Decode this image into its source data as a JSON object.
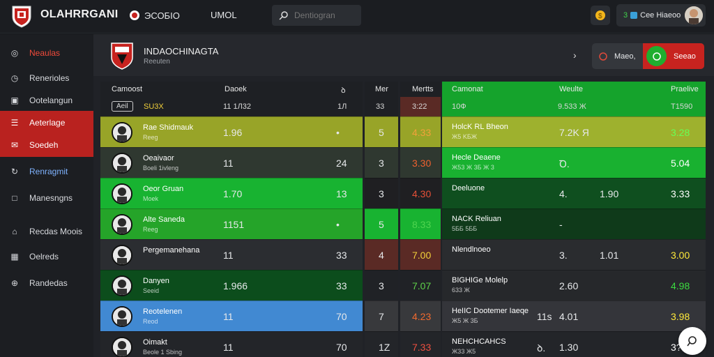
{
  "app": {
    "title": "OLAHRRGANI",
    "logo": "shield-logo"
  },
  "topnav": {
    "item_a": "ЭСОБIO",
    "item_b": "UMOL"
  },
  "search": {
    "placeholder": "Dentiogran"
  },
  "user": {
    "prefix": "3",
    "name": "Cee Hiaeoo"
  },
  "sidebar": {
    "items": [
      {
        "label": "Neaulas",
        "icon": "soccer-ball-icon",
        "state": "red-text"
      },
      {
        "label": "Renerioles",
        "icon": "clock-icon",
        "state": "normal"
      },
      {
        "label": "Ootelangun",
        "icon": "calendar-icon",
        "state": "normal"
      },
      {
        "label": "Aeterlage",
        "icon": "list-icon",
        "state": "active"
      },
      {
        "label": "Soedeh",
        "icon": "message-icon",
        "state": "active"
      },
      {
        "label": "Renragmit",
        "icon": "refresh-icon",
        "state": "blue-text"
      },
      {
        "label": "Manesngns",
        "icon": "square-icon",
        "state": "normal"
      },
      {
        "label": "Recdas Moois",
        "icon": "tag-icon",
        "state": "normal"
      },
      {
        "label": "Oelreds",
        "icon": "grid-icon",
        "state": "normal"
      },
      {
        "label": "Randedas",
        "icon": "globe-icon",
        "state": "normal"
      }
    ]
  },
  "header": {
    "title": "INDAOCHINAGTA",
    "subtitle": "Reeuten",
    "toggle_left": "Maeo,",
    "toggle_right": "Seeao"
  },
  "left_table": {
    "headers": {
      "name": "Camoost",
      "value": "Daoek",
      "icon": "ꝺ"
    },
    "subheader": {
      "badge": "Aeil",
      "label": "SU3X",
      "value": "11 1Л32",
      "extra": "1Л"
    },
    "rows": [
      {
        "name": "Rae Shidmauk",
        "meta": "Reeg",
        "value": "1.96",
        "extra": "•",
        "bg": "#98a428"
      },
      {
        "name": "Oeaivaor",
        "meta": "Boeli 1ivleng",
        "value": "11",
        "extra": "24",
        "bg": "#2f3830"
      },
      {
        "name": "Oeor Gruan",
        "meta": "Moek",
        "value": "1.70",
        "extra": "13",
        "bg": "#18b331"
      },
      {
        "name": "Alte Saneda",
        "meta": "Reeg",
        "value": "1151",
        "extra": "•",
        "bg": "#25a429"
      },
      {
        "name": "Pergemanehana",
        "meta": "",
        "value": "11",
        "extra": "33",
        "bg": "#2b2d31"
      },
      {
        "name": "Danyen",
        "meta": "Seeid",
        "value": "1.966",
        "extra": "33",
        "bg": "#0c4d1c"
      },
      {
        "name": "Reotelenen",
        "meta": "Reod",
        "value": "11",
        "extra": "70",
        "bg": "#4189d2"
      },
      {
        "name": "Oimakt",
        "meta": "Beole 1 Sbing",
        "value": "11",
        "extra": "70",
        "bg": "#232529"
      }
    ]
  },
  "mid_col": {
    "header": "Mer",
    "subheader": "33",
    "values": [
      "5",
      "3",
      "3",
      "5",
      "4",
      "3",
      "7",
      "1Z"
    ],
    "bgs": [
      "#98a428",
      "#2f3830",
      "#1f1f22",
      "#18b331",
      "#5a2a25",
      "#202226",
      "#38393c",
      "#232529"
    ]
  },
  "odds_col": {
    "header": "Mertts",
    "subheader": "3:22",
    "values": [
      "4.33",
      "3.30",
      "4.30",
      "8.33",
      "7.00",
      "7.07",
      "4.23",
      "7.33"
    ],
    "colors": [
      "#f2a13a",
      "#f0612f",
      "#e65037",
      "#4fd44f",
      "#f2d03a",
      "#5ed14a",
      "#f06a2f",
      "#ef5040"
    ],
    "bgs": [
      "#98a428",
      "#2f3830",
      "#1f1f22",
      "#18b331",
      "#5a2a25",
      "#202226",
      "#38393c",
      "#232529"
    ]
  },
  "right_table": {
    "headers": {
      "name": "Camonat",
      "mid": "Weulte",
      "right": "Praelive"
    },
    "subheader": {
      "left": "10Ф",
      "mid": "9.533 Ж",
      "right": "T1590"
    },
    "rows": [
      {
        "name": "HolcK RL Bheon",
        "meta": "Ж5 KБЖ",
        "icons": "",
        "mid": "7.2K Я",
        "right": "3.28",
        "right_color": "#67ff55",
        "bg": "#9eb12e"
      },
      {
        "name": "Hecle Deaene",
        "meta": "Ж53 Ж 3Б Ж 3",
        "icons": "ᴴ",
        "mid": "Ꝺ.",
        "right": "5.04",
        "right_color": "#ffffff",
        "bg": "#19b130"
      },
      {
        "name": "Deeluone",
        "meta": "",
        "icons": "",
        "mid": "4.",
        "right": "3.33",
        "right_color": "#ffffff",
        "bg": "#0f4f1f"
      },
      {
        "name": "NACK Reliuan",
        "meta": "5ББ 5ББ",
        "icons": "",
        "mid": "-",
        "right": "",
        "right_color": "#ffffff",
        "bg": "#0f3a1a"
      },
      {
        "name": "Nlendlnoeo",
        "meta": "",
        "icons": "",
        "mid": "3.",
        "right": "3.00",
        "right_color": "#ffe93a",
        "bg": "#2a2c2f"
      },
      {
        "name": "BIGHIGe Molelp",
        "meta": "633 Ж",
        "icons": "",
        "mid": "2.60",
        "right": "4.98",
        "right_color": "#3cdc40",
        "bg": "#26282b"
      },
      {
        "name": "HeIIC Dootemer Iaeqe",
        "meta": "Ж5 Ж 3Б",
        "icons": "",
        "mid": "4.01",
        "right": "3.98",
        "right_color": "#ffe93a",
        "bg": "#34353a"
      },
      {
        "name": "NEHCHCAHCS",
        "meta": "Ж33 Ж5",
        "icons": "",
        "mid": "1.30",
        "right": "3?",
        "right_color": "#ffffff",
        "bg": "#232529"
      }
    ],
    "row_mid2": [
      "",
      "",
      "1.90",
      "",
      "1.01",
      "",
      "",
      ""
    ],
    "row_mid1": [
      "",
      "",
      "",
      "",
      "",
      "",
      "11s",
      "ꝺ."
    ]
  },
  "fab": {
    "icon": "chat-icon"
  }
}
